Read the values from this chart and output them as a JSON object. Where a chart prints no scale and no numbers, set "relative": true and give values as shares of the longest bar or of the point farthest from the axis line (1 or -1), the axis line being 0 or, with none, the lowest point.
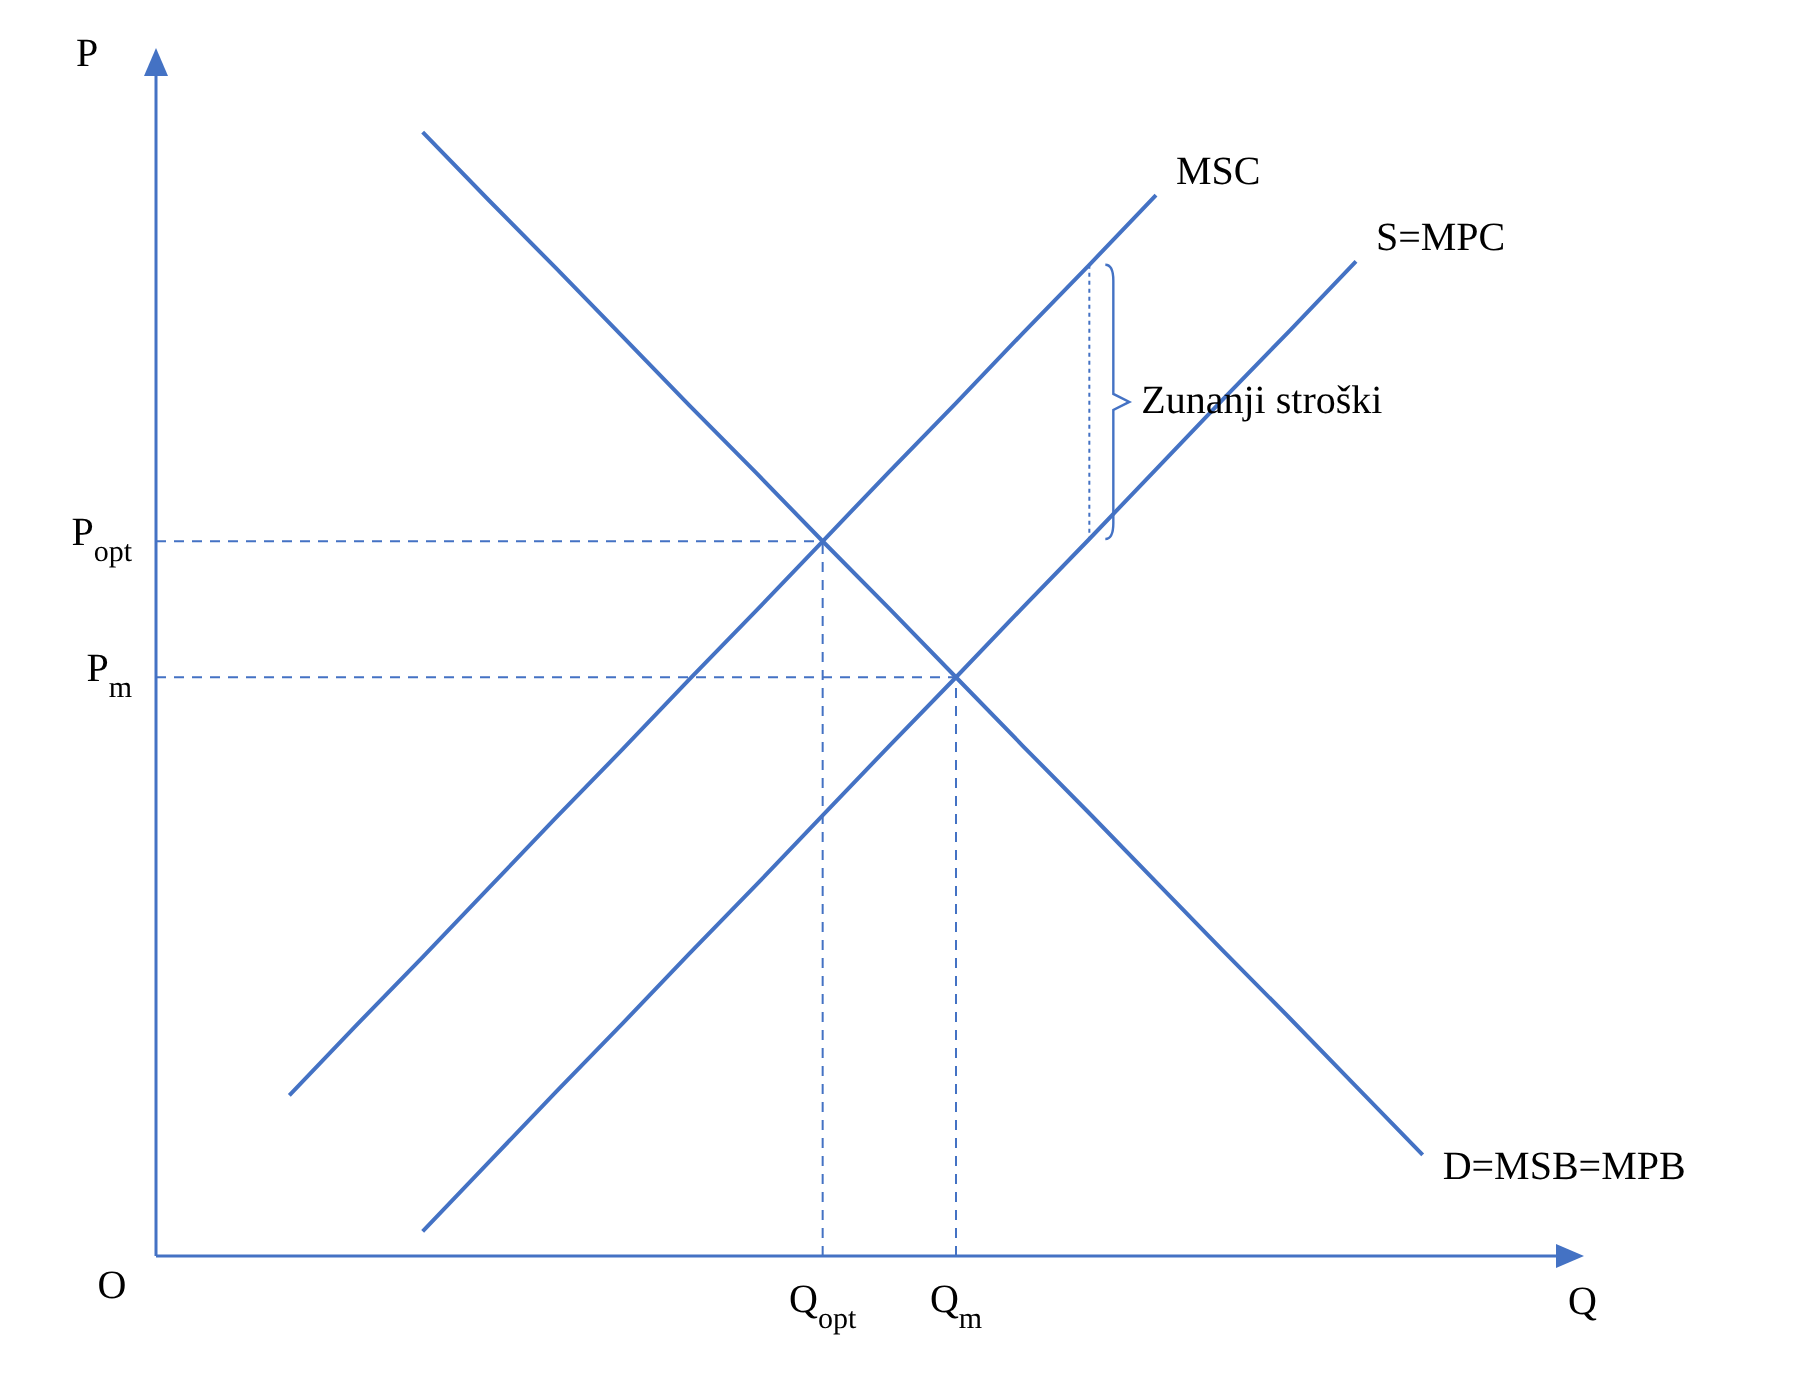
{
  "chart_data": {
    "type": "line",
    "relative": true,
    "xlabel": "Q",
    "ylabel": "P",
    "categories": [
      null,
      null,
      null,
      null,
      null,
      null,
      null,
      null,
      null,
      null,
      "Q$_{opt}$",
      null,
      "Q$_{m}$",
      null,
      null,
      null,
      null,
      null,
      null,
      null,
      null,
      null
    ],
    "series": [
      {
        "name": "MSC",
        "color": "#4472c4",
        "values": [
          null,
          null,
          0.143,
          0.205,
          0.266,
          0.328,
          0.39,
          0.451,
          0.513,
          0.574,
          0.636,
          0.698,
          0.759,
          0.821,
          0.882,
          0.944,
          null,
          null,
          null,
          null,
          null,
          null
        ]
      },
      {
        "name": "S=MPC",
        "color": "#4472c4",
        "values": [
          null,
          null,
          null,
          null,
          0.022,
          0.084,
          0.146,
          0.207,
          0.269,
          0.33,
          0.392,
          0.454,
          0.515,
          0.577,
          0.638,
          0.7,
          0.762,
          0.823,
          0.885,
          null,
          null,
          null
        ]
      },
      {
        "name": "D=MSB=MPB",
        "color": "#4472c4",
        "values": [
          null,
          null,
          null,
          null,
          1,
          0.939,
          0.879,
          0.818,
          0.757,
          0.697,
          0.636,
          0.576,
          0.515,
          0.454,
          0.394,
          0.333,
          0.272,
          0.212,
          0.151,
          0.09,
          null,
          null
        ]
      }
    ],
    "ref_lines": [
      {
        "axis": "y",
        "value": 0.636,
        "label": "P$_{opt}$",
        "line_style": "dashed",
        "color": "#4472c4"
      },
      {
        "axis": "y",
        "value": 0.515,
        "label": "P$_{m}$",
        "line_style": "dashed",
        "color": "#4472c4"
      },
      {
        "axis": "x",
        "value": "Q$_{opt}$",
        "line_style": "dashed",
        "color": "#4472c4"
      },
      {
        "axis": "x",
        "value": "Q$_{m}$",
        "line_style": "dashed",
        "color": "#4472c4"
      }
    ],
    "annotations": [
      "Zunanji stroški",
      "O"
    ]
  }
}
